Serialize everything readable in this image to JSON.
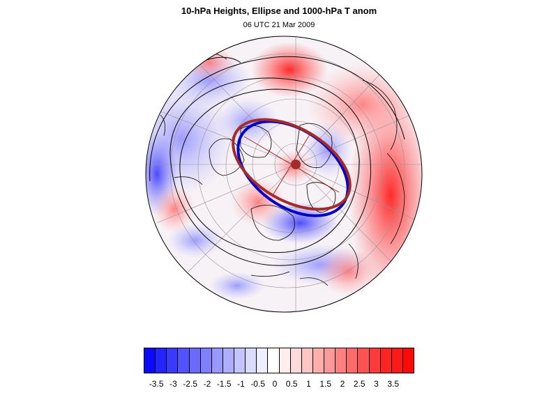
{
  "title": "10-hPa Heights, Ellipse and 1000-hPa T anom",
  "subtitle": "06 UTC 21 Mar 2009",
  "map": {
    "projection": "north-polar-orthographic",
    "field": "1000-hPa T anom",
    "contours": "10-hPa Heights",
    "ellipse_colors": {
      "fit": "#a52a2a",
      "alt": "#0000cc"
    },
    "land_outline_color": "#000000"
  },
  "colorbar": {
    "colors": [
      "#0a0aff",
      "#2424ff",
      "#3a3aff",
      "#5252ff",
      "#6a6aff",
      "#8080ff",
      "#9898ff",
      "#aeaeff",
      "#c4c4ff",
      "#dadaff",
      "#eeeeff",
      "#ffffff",
      "#ffeeee",
      "#ffdada",
      "#ffc4c4",
      "#ffaeae",
      "#ff9898",
      "#ff8080",
      "#ff6a6a",
      "#ff5252",
      "#ff3a3a",
      "#ff2424",
      "#ff1a1a",
      "#ff0a0a"
    ],
    "labels": [
      "-3.5",
      "-3",
      "-2.5",
      "-2",
      "-1.5",
      "-1",
      "-0.5",
      "0",
      "0.5",
      "1",
      "1.5",
      "2",
      "2.5",
      "3",
      "3.5"
    ]
  }
}
